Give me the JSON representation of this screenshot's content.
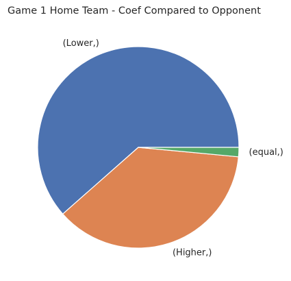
{
  "chart_data": {
    "type": "pie",
    "title": "Game 1 Home Team - Coef Compared to Opponent",
    "slices": [
      {
        "label": "(Lower,)",
        "value": 0.615,
        "color": "#4c72b0"
      },
      {
        "label": "(Higher,)",
        "value": 0.37,
        "color": "#dd8452"
      },
      {
        "label": "(equal,)",
        "value": 0.015,
        "color": "#55a868"
      }
    ],
    "start_angle_deg": 0,
    "direction": "counterclockwise",
    "legend": "none"
  }
}
